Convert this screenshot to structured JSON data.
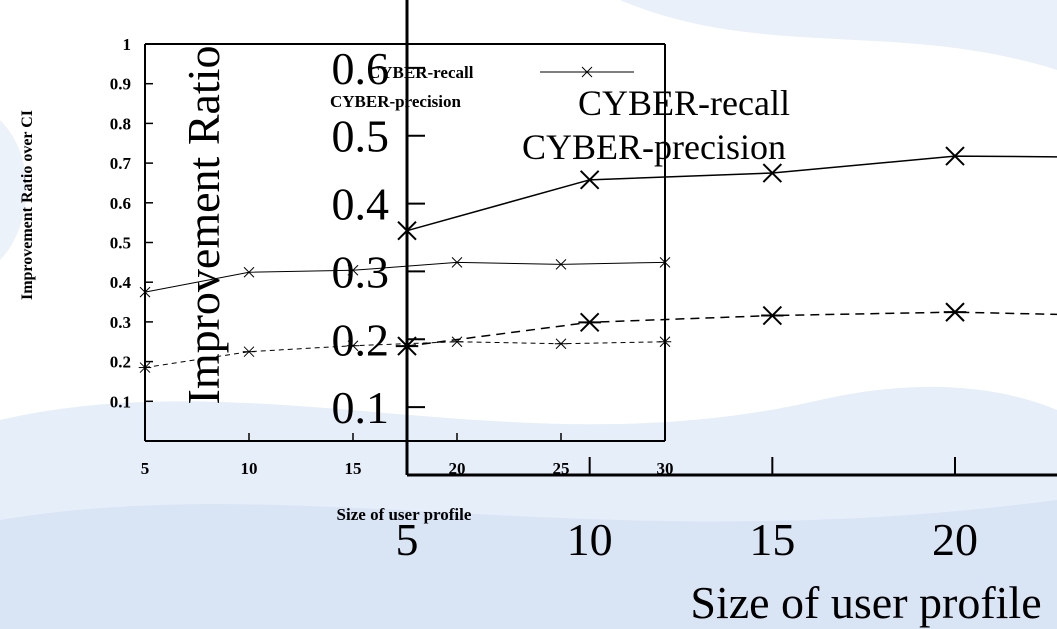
{
  "background": {
    "base": "#ffffff",
    "swirl": "#e3ecf8",
    "swirl_dark": "#cddcf0"
  },
  "chart_data": [
    {
      "type": "line",
      "title": "",
      "xlabel": "Size of user profile",
      "ylabel": "Improvement Ratio over CI",
      "xlim": [
        5,
        30
      ],
      "ylim": [
        0,
        1
      ],
      "x_ticks": [
        "5",
        "10",
        "15",
        "20",
        "25",
        "30"
      ],
      "y_ticks": [
        "0.1",
        "0.2",
        "0.3",
        "0.4",
        "0.5",
        "0.6",
        "0.7",
        "0.8",
        "0.9",
        "1"
      ],
      "legend": {
        "position": "top-right",
        "entries": [
          "CYBER-recall",
          "CYBER-precision"
        ]
      },
      "series": [
        {
          "name": "CYBER-recall",
          "marker": "x",
          "line": "solid",
          "x": [
            5,
            10,
            15,
            20,
            25,
            30
          ],
          "values": [
            0.375,
            0.425,
            0.43,
            0.45,
            0.445,
            0.45
          ]
        },
        {
          "name": "CYBER-precision",
          "marker": "asterisk",
          "line": "dashed",
          "x": [
            5,
            10,
            15,
            20,
            25,
            30
          ],
          "values": [
            0.185,
            0.225,
            0.24,
            0.25,
            0.245,
            0.25
          ]
        }
      ]
    },
    {
      "type": "line",
      "title": "",
      "xlabel": "Size of user profile",
      "ylabel": "Improvement Ratio",
      "xlim": [
        5,
        30
      ],
      "ylim": [
        0,
        0.7
      ],
      "x_ticks": [
        "5",
        "10",
        "15",
        "20"
      ],
      "y_ticks": [
        "0.1",
        "0.2",
        "0.3",
        "0.4",
        "0.5",
        "0.6"
      ],
      "legend": {
        "position": "top-right",
        "entries": [
          "CYBER-recall",
          "CYBER-precision"
        ]
      },
      "series": [
        {
          "name": "CYBER-recall",
          "marker": "x",
          "line": "solid",
          "x": [
            5,
            10,
            15,
            20,
            25
          ],
          "values": [
            0.36,
            0.435,
            0.445,
            0.47,
            0.468
          ]
        },
        {
          "name": "CYBER-precision",
          "marker": "asterisk",
          "line": "dashed",
          "x": [
            5,
            10,
            15,
            20,
            25
          ],
          "values": [
            0.19,
            0.225,
            0.235,
            0.24,
            0.234
          ]
        }
      ]
    }
  ]
}
